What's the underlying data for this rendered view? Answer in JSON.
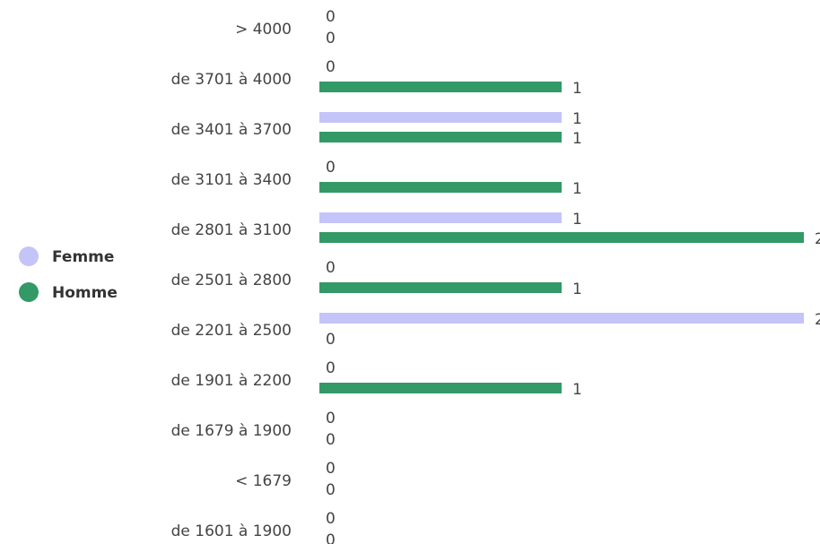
{
  "chart_data": {
    "type": "bar",
    "orientation": "horizontal",
    "legend": "left",
    "categories": [
      "> 4000",
      "de 3701 à 4000",
      "de 3401 à 3700",
      "de 3101 à 3400",
      "de 2801 à 3100",
      "de 2501 à 2800",
      "de 2201 à 2500",
      "de 1901 à 2200",
      "de 1679 à 1900",
      "< 1679",
      "de 1601 à 1900"
    ],
    "series": [
      {
        "name": "Femme",
        "color": "#c4c4f8",
        "values": [
          0,
          0,
          1,
          0,
          1,
          0,
          2,
          0,
          0,
          0,
          0
        ]
      },
      {
        "name": "Homme",
        "color": "#339966",
        "values": [
          0,
          1,
          1,
          1,
          2,
          1,
          0,
          1,
          0,
          0,
          0
        ]
      }
    ]
  }
}
